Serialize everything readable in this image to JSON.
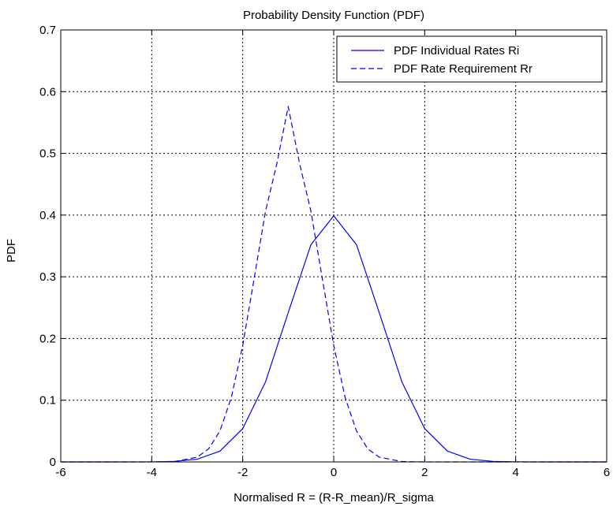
{
  "chart_data": {
    "type": "line",
    "title": "Probability Density Function (PDF)",
    "xlabel": "Normalised R = (R-R_mean)/R_sigma",
    "ylabel": "PDF",
    "xlim": [
      -6,
      6
    ],
    "ylim": [
      0,
      0.7
    ],
    "x_ticks": [
      -6,
      -4,
      -2,
      0,
      2,
      4,
      6
    ],
    "x_tick_labels": [
      "-6",
      "-4",
      "-2",
      "0",
      "2",
      "4",
      "6"
    ],
    "y_ticks": [
      0,
      0.1,
      0.2,
      0.3,
      0.4,
      0.5,
      0.6,
      0.7
    ],
    "y_tick_labels": [
      "0",
      "0.1",
      "0.2",
      "0.3",
      "0.4",
      "0.5",
      "0.6",
      "0.7"
    ],
    "grid": true,
    "legend_position": "top-right",
    "series": [
      {
        "name": "PDF Individual Rates Ri",
        "line_style": "solid",
        "color": "#0000ff",
        "x": [
          -6,
          -5,
          -4,
          -3.5,
          -3,
          -2.5,
          -2,
          -1.5,
          -1,
          -0.5,
          0,
          0.5,
          1,
          1.5,
          2,
          2.5,
          3,
          3.5,
          4,
          5,
          6
        ],
        "y": [
          0.0,
          0.0,
          0.0001,
          0.0009,
          0.0044,
          0.0175,
          0.054,
          0.1295,
          0.242,
          0.3521,
          0.3989,
          0.3521,
          0.242,
          0.1295,
          0.054,
          0.0175,
          0.0044,
          0.0009,
          0.0001,
          0.0,
          0.0
        ]
      },
      {
        "name": "PDF Rate Requirement Rr",
        "line_style": "dashed",
        "color": "#0000ff",
        "x": [
          -6,
          -4,
          -3.5,
          -3,
          -2.75,
          -2.5,
          -2.25,
          -2,
          -1.75,
          -1.5,
          -1.25,
          -1,
          -0.75,
          -0.5,
          -0.25,
          0,
          0.25,
          0.5,
          0.75,
          1,
          1.5,
          2,
          4,
          6
        ],
        "y": [
          0.0,
          0.0,
          0.0006,
          0.0077,
          0.0211,
          0.0503,
          0.1046,
          0.1888,
          0.2967,
          0.4059,
          0.4834,
          0.5759,
          0.4834,
          0.4059,
          0.2967,
          0.1888,
          0.1046,
          0.0503,
          0.0211,
          0.0077,
          0.0006,
          0.0,
          0.0,
          0.0
        ]
      }
    ]
  }
}
